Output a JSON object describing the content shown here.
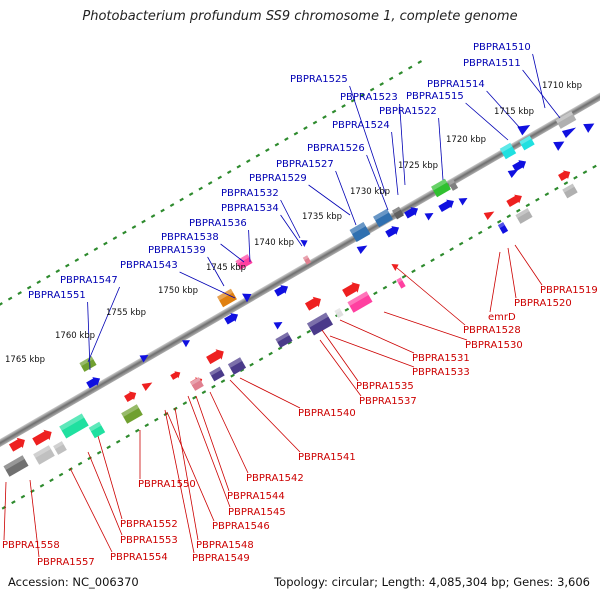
{
  "title": "Photobacterium profundum SS9 chromosome 1, complete genome",
  "footer": {
    "accession": "Accession: NC_006370",
    "summary": "Topology: circular; Length: 4,085,304 bp; Genes: 3,606"
  },
  "colors": {
    "upper_label": "#0000b4",
    "lower_label": "#cc0000",
    "tick": "#2e8b2e",
    "backbone": "#8a8a8a"
  },
  "kbp_ticks": [
    "1710 kbp",
    "1715 kbp",
    "1720 kbp",
    "1725 kbp",
    "1730 kbp",
    "1735 kbp",
    "1740 kbp",
    "1745 kbp",
    "1750 kbp",
    "1755 kbp",
    "1760 kbp",
    "1765 kbp"
  ],
  "upper_labels": [
    "PBPRA1510",
    "PBPRA1511",
    "PBPRA1514",
    "PBPRA1515",
    "PBPRA1522",
    "PBPRA1523",
    "PBPRA1524",
    "PBPRA1525",
    "PBPRA1526",
    "PBPRA1527",
    "PBPRA1529",
    "PBPRA1532",
    "PBPRA1534",
    "PBPRA1536",
    "PBPRA1538",
    "PBPRA1539",
    "PBPRA1543",
    "PBPRA1547",
    "PBPRA1551"
  ],
  "lower_labels": [
    "PBPRA1519",
    "PBPRA1520",
    "emrD",
    "PBPRA1528",
    "PBPRA1530",
    "PBPRA1531",
    "PBPRA1533",
    "PBPRA1535",
    "PBPRA1537",
    "PBPRA1540",
    "PBPRA1541",
    "PBPRA1542",
    "PBPRA1544",
    "PBPRA1545",
    "PBPRA1546",
    "PBPRA1548",
    "PBPRA1549",
    "PBPRA1550",
    "PBPRA1552",
    "PBPRA1553",
    "PBPRA1554",
    "PBPRA1557",
    "PBPRA1558"
  ]
}
